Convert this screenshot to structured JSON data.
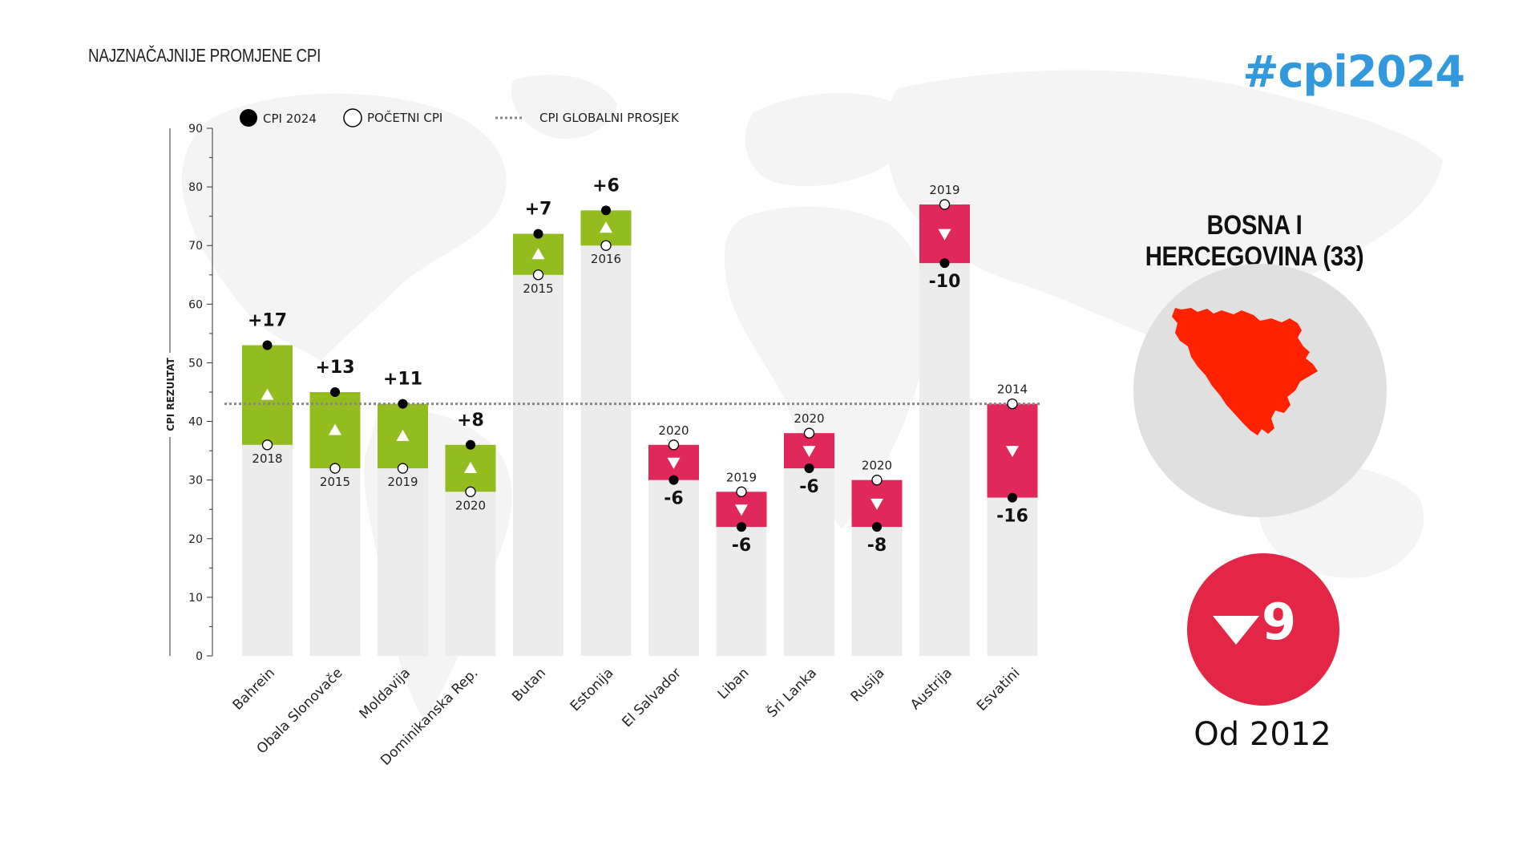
{
  "page": {
    "title": "NAJZNAČAJNIJE PROMJENE CPI",
    "hashtag": "#cpi2024"
  },
  "legend": {
    "current_label": "CPI 2024",
    "initial_label": "POČETNI CPI",
    "average_label": "CPI GLOBALNI PROSJEK"
  },
  "panel": {
    "country_title": "BOSNA I HERCEGOVINA (33)",
    "map_icon": "bosnia-herzegovina-map-icon",
    "map_color": "#ff2200",
    "change_icon": "triangle-down-icon",
    "change_value": "9",
    "since_label": "Od 2012"
  },
  "colors": {
    "increase": "#93bc1e",
    "decrease": "#e0285a",
    "bar_background": "#ececec",
    "average_line": "#888888",
    "hashtag": "#3399dd",
    "badge": "#e32546"
  },
  "chart_data": {
    "type": "bar",
    "ylabel": "CPI REZULTAT",
    "ylim": [
      0,
      90
    ],
    "yticks": [
      0,
      10,
      20,
      30,
      40,
      50,
      60,
      70,
      80,
      90
    ],
    "global_average": 43,
    "categories": [
      "Bahrein",
      "Obala Slonovače",
      "Moldavija",
      "Dominikanska Rep.",
      "Butan",
      "Estonija",
      "El Salvador",
      "Liban",
      "Šri Lanka",
      "Rusija",
      "Austrija",
      "Esvatini"
    ],
    "series": [
      {
        "name": "CPI 2024",
        "values": [
          53,
          45,
          43,
          36,
          72,
          76,
          30,
          22,
          32,
          22,
          67,
          27
        ]
      },
      {
        "name": "POČETNI CPI",
        "values": [
          36,
          32,
          32,
          28,
          65,
          70,
          36,
          28,
          38,
          30,
          77,
          43
        ]
      }
    ],
    "start_years": [
      "2018",
      "2015",
      "2019",
      "2020",
      "2015",
      "2016",
      "2020",
      "2019",
      "2020",
      "2020",
      "2019",
      "2014"
    ],
    "change_labels": [
      "+17",
      "+13",
      "+11",
      "+8",
      "+7",
      "+6",
      "-6",
      "-6",
      "-6",
      "-8",
      "-10",
      "-16"
    ]
  }
}
